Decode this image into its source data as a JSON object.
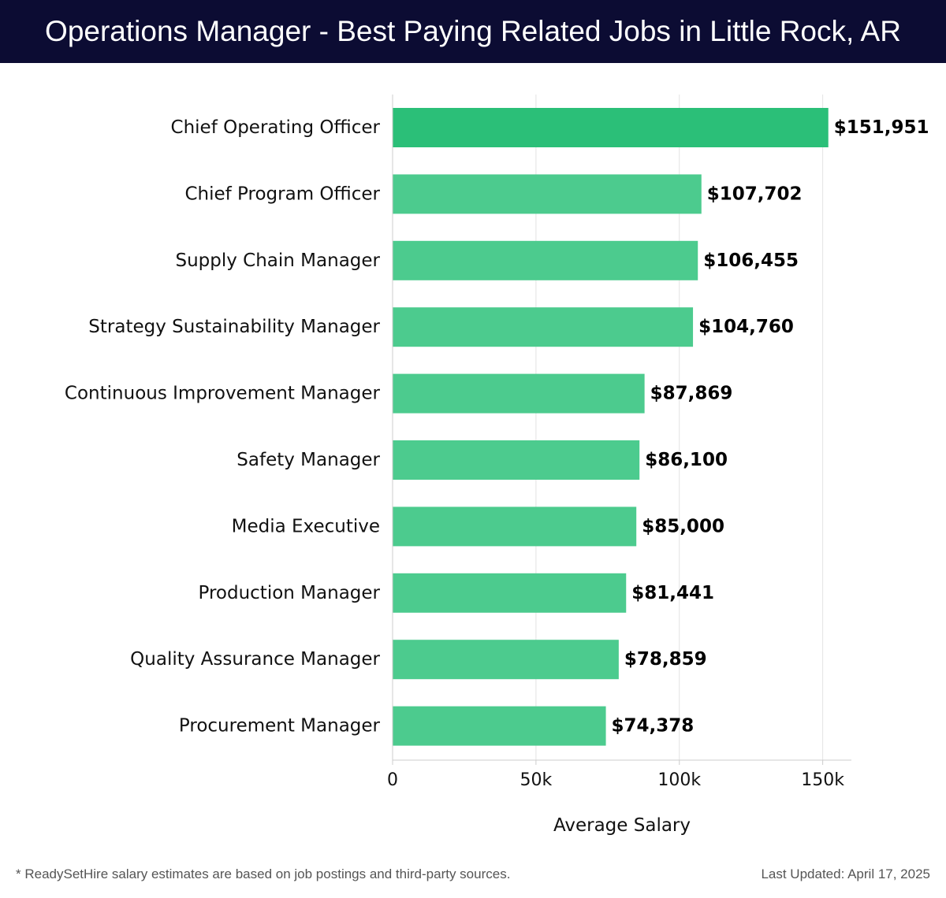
{
  "title": "Operations Manager - Best Paying Related Jobs in Little Rock, AR",
  "footnote": "* ReadySetHire salary estimates are based on job postings and third-party sources.",
  "last_updated": "Last Updated: April 17, 2025",
  "colors": {
    "header_bg": "#0c0c33",
    "top_bar": "#2bbf78",
    "bar": "#4ccb8e"
  },
  "chart_data": {
    "type": "bar",
    "orientation": "horizontal",
    "title": "Operations Manager - Best Paying Related Jobs in Little Rock, AR",
    "xlabel": "Average Salary",
    "ylabel": "",
    "xlim": [
      0,
      160000
    ],
    "xticks": [
      0,
      50000,
      100000,
      150000
    ],
    "xtick_labels": [
      "0",
      "50k",
      "100k",
      "150k"
    ],
    "grid": true,
    "categories": [
      "Chief Operating Officer",
      "Chief Program Officer",
      "Supply Chain Manager",
      "Strategy Sustainability Manager",
      "Continuous Improvement Manager",
      "Safety Manager",
      "Media Executive",
      "Production Manager",
      "Quality Assurance Manager",
      "Procurement Manager"
    ],
    "values": [
      151951,
      107702,
      106455,
      104760,
      87869,
      86100,
      85000,
      81441,
      78859,
      74378
    ],
    "value_labels": [
      "$151,951",
      "$107,702",
      "$106,455",
      "$104,760",
      "$87,869",
      "$86,100",
      "$85,000",
      "$81,441",
      "$78,859",
      "$74,378"
    ]
  }
}
